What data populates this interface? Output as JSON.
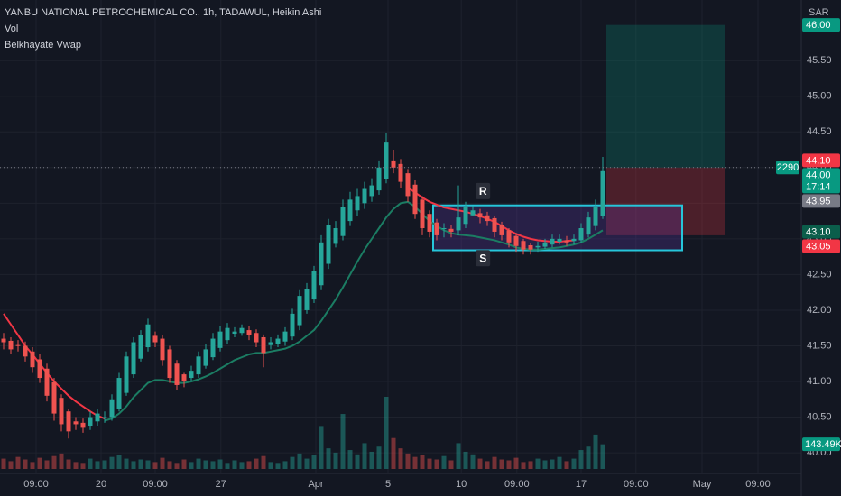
{
  "chart_data": {
    "type": "candlestick",
    "title": "YANBU NATIONAL PETROCHEMICAL CO., 1h, TADAWUL, Heikin Ashi",
    "legend": [
      "Vol",
      "Belkhayate Vwap"
    ],
    "currency": "SAR",
    "up_color": "#26a69a",
    "down_color": "#ef5350",
    "grid": true,
    "xlim": [
      -0.5,
      110.5
    ],
    "ylim": [
      39.71,
      46.35
    ],
    "xticks": [
      {
        "value": 4.5,
        "label": "09:00"
      },
      {
        "value": 13.5,
        "label": "20"
      },
      {
        "value": 21,
        "label": "09:00"
      },
      {
        "value": 30.1,
        "label": "27"
      },
      {
        "value": 43.25,
        "label": "Apr"
      },
      {
        "value": 53.25,
        "label": "5"
      },
      {
        "value": 63.4,
        "label": "10"
      },
      {
        "value": 71.1,
        "label": "09:00"
      },
      {
        "value": 80,
        "label": "17"
      },
      {
        "value": 87.6,
        "label": "09:00"
      },
      {
        "value": 96.75,
        "label": "May"
      },
      {
        "value": 104.5,
        "label": "09:00"
      }
    ],
    "yticks": [
      {
        "value": 40.0,
        "label": "40.00"
      },
      {
        "value": 40.5,
        "label": "40.50"
      },
      {
        "value": 41.0,
        "label": "41.00"
      },
      {
        "value": 41.5,
        "label": "41.50"
      },
      {
        "value": 42.0,
        "label": "42.00"
      },
      {
        "value": 42.5,
        "label": "42.50"
      },
      {
        "value": 43.0,
        "label": "43.00"
      },
      {
        "value": 43.5,
        "label": "43.50"
      },
      {
        "value": 44.0,
        "label": "44.00"
      },
      {
        "value": 44.5,
        "label": "44.50"
      },
      {
        "value": 45.0,
        "label": "45.00"
      },
      {
        "value": 45.5,
        "label": "45.50"
      }
    ],
    "open": [
      41.6,
      41.57,
      41.51,
      41.5,
      41.42,
      41.31,
      41.18,
      40.99,
      40.77,
      40.58,
      40.44,
      40.42,
      40.38,
      40.44,
      40.5,
      40.5,
      40.62,
      40.84,
      41.1,
      41.32,
      41.48,
      41.64,
      41.6,
      41.45,
      41.25,
      41.1,
      41.05,
      41.1,
      41.22,
      41.34,
      41.47,
      41.58,
      41.67,
      41.68,
      41.72,
      41.68,
      41.62,
      41.51,
      41.53,
      41.56,
      41.63,
      41.79,
      42.0,
      42.15,
      42.35,
      42.65,
      42.93,
      43.04,
      43.25,
      43.4,
      43.5,
      43.6,
      43.68,
      43.84,
      44.1,
      44.05,
      43.92,
      43.76,
      43.55,
      43.35,
      43.23,
      43.14,
      43.14,
      43.12,
      43.21,
      43.33,
      43.36,
      43.33,
      43.29,
      43.2,
      43.12,
      43.04,
      42.97,
      42.91,
      42.88,
      42.89,
      42.92,
      42.96,
      42.98,
      42.97,
      42.98,
      43.06,
      43.18,
      43.32
    ],
    "high": [
      41.68,
      41.62,
      41.58,
      41.56,
      41.48,
      41.38,
      41.25,
      41.05,
      40.82,
      40.62,
      40.5,
      40.48,
      40.58,
      40.62,
      40.58,
      40.82,
      41.12,
      41.42,
      41.62,
      41.72,
      41.88,
      41.7,
      41.65,
      41.5,
      41.3,
      41.12,
      41.22,
      41.42,
      41.52,
      41.68,
      41.78,
      41.82,
      41.76,
      41.8,
      41.78,
      41.73,
      41.66,
      41.62,
      41.66,
      41.76,
      42.02,
      42.28,
      42.38,
      42.62,
      43.05,
      43.28,
      43.25,
      43.55,
      43.66,
      43.7,
      43.8,
      43.85,
      44.1,
      44.48,
      44.25,
      44.12,
      43.98,
      43.82,
      43.6,
      43.4,
      43.28,
      43.22,
      43.2,
      43.75,
      43.52,
      43.46,
      43.42,
      43.38,
      43.32,
      43.24,
      43.15,
      43.08,
      43.0,
      42.94,
      42.96,
      43.0,
      43.06,
      43.06,
      43.04,
      43.06,
      43.22,
      43.38,
      43.55,
      44.15
    ],
    "low": [
      41.45,
      41.38,
      41.42,
      41.28,
      41.12,
      40.98,
      40.72,
      40.45,
      40.3,
      40.2,
      40.32,
      40.28,
      40.32,
      40.38,
      40.42,
      40.45,
      40.58,
      40.8,
      41.05,
      41.28,
      41.42,
      41.48,
      41.22,
      40.98,
      40.88,
      40.92,
      41.0,
      41.05,
      41.18,
      41.3,
      41.42,
      41.52,
      41.62,
      41.64,
      41.58,
      41.48,
      41.2,
      41.45,
      41.48,
      41.5,
      41.58,
      41.72,
      41.95,
      42.1,
      42.28,
      42.58,
      42.88,
      42.98,
      43.18,
      43.32,
      43.42,
      43.52,
      43.62,
      43.78,
      43.92,
      43.72,
      43.52,
      43.28,
      43.05,
      43.02,
      42.98,
      43.02,
      43.02,
      43.05,
      43.15,
      43.32,
      43.22,
      43.18,
      43.02,
      42.98,
      42.88,
      42.82,
      42.78,
      42.78,
      42.82,
      42.86,
      42.88,
      42.92,
      42.9,
      42.92,
      42.94,
      43.02,
      43.12,
      43.28
    ],
    "close": [
      41.55,
      41.45,
      41.5,
      41.35,
      41.2,
      41.05,
      40.8,
      40.55,
      40.4,
      40.3,
      40.4,
      40.35,
      40.5,
      40.55,
      40.5,
      40.75,
      41.05,
      41.35,
      41.55,
      41.65,
      41.8,
      41.55,
      41.3,
      41.05,
      40.95,
      41.0,
      41.15,
      41.35,
      41.45,
      41.6,
      41.7,
      41.75,
      41.7,
      41.75,
      41.65,
      41.55,
      41.4,
      41.55,
      41.6,
      41.7,
      41.95,
      42.2,
      42.3,
      42.55,
      42.95,
      43.2,
      43.15,
      43.45,
      43.55,
      43.6,
      43.7,
      43.75,
      44.0,
      44.35,
      44.0,
      43.8,
      43.6,
      43.35,
      43.15,
      43.1,
      43.05,
      43.15,
      43.1,
      43.3,
      43.45,
      43.4,
      43.3,
      43.25,
      43.1,
      43.05,
      42.95,
      42.9,
      42.85,
      42.85,
      42.9,
      42.95,
      43.0,
      43.0,
      42.95,
      43.0,
      43.15,
      43.3,
      43.45,
      43.95
    ],
    "volume": {
      "values": [
        60000,
        45000,
        70000,
        55000,
        40000,
        65000,
        50000,
        75000,
        90000,
        55000,
        40000,
        35000,
        60000,
        45000,
        50000,
        70000,
        80000,
        60000,
        45000,
        55000,
        50000,
        40000,
        65000,
        45000,
        35000,
        55000,
        40000,
        60000,
        50000,
        45000,
        55000,
        35000,
        50000,
        40000,
        45000,
        60000,
        75000,
        40000,
        35000,
        45000,
        70000,
        90000,
        60000,
        80000,
        250000,
        120000,
        95000,
        320000,
        110000,
        85000,
        150000,
        100000,
        130000,
        420000,
        180000,
        120000,
        90000,
        70000,
        80000,
        60000,
        55000,
        75000,
        50000,
        150000,
        100000,
        85000,
        60000,
        45000,
        70000,
        55000,
        50000,
        65000,
        40000,
        45000,
        60000,
        50000,
        55000,
        70000,
        45000,
        60000,
        110000,
        130000,
        200000,
        143490
      ],
      "last_label": "143.49K",
      "color": "#089981"
    },
    "lines": [
      {
        "color": "#f23645",
        "values": [
          41.95,
          41.8,
          41.65,
          41.5,
          41.38,
          41.25,
          41.12,
          41.0,
          40.9,
          40.8,
          40.72,
          40.65,
          40.58,
          40.52,
          40.48,
          null,
          null,
          null,
          null,
          null,
          null,
          null,
          null,
          null,
          null,
          null,
          null,
          null,
          null,
          null,
          null,
          null,
          null,
          null,
          null,
          null,
          null,
          null,
          null,
          null,
          null,
          null,
          null,
          null,
          null,
          null,
          null,
          null,
          null,
          null,
          null,
          null,
          null,
          null,
          null,
          null,
          43.72,
          43.65,
          43.58,
          43.52,
          43.48,
          43.44,
          43.42,
          43.4,
          43.38,
          43.35,
          43.32,
          43.28,
          43.24,
          43.18,
          43.12,
          43.07,
          43.03,
          43.0,
          42.98,
          42.97,
          42.96,
          42.96,
          42.97,
          42.98,
          null,
          null,
          null,
          null
        ]
      },
      {
        "color": "#1b7d63",
        "values": [
          null,
          null,
          null,
          null,
          null,
          null,
          null,
          null,
          null,
          null,
          null,
          null,
          null,
          null,
          40.45,
          40.48,
          40.55,
          40.65,
          40.78,
          40.88,
          40.98,
          41.02,
          41.02,
          41.0,
          40.98,
          40.98,
          41.0,
          41.03,
          41.07,
          41.12,
          41.18,
          41.24,
          41.3,
          41.34,
          41.38,
          41.4,
          41.4,
          41.42,
          41.44,
          41.46,
          41.5,
          41.56,
          41.64,
          41.72,
          41.85,
          42.0,
          42.15,
          42.32,
          42.5,
          42.68,
          42.85,
          43.0,
          43.15,
          43.3,
          43.42,
          43.5,
          43.52,
          43.45,
          43.35,
          43.25,
          43.18,
          43.12,
          43.08,
          43.06,
          43.05,
          43.04,
          43.02,
          43.0,
          42.98,
          42.95,
          42.92,
          42.88,
          42.86,
          42.85,
          42.85,
          42.86,
          42.87,
          42.88,
          42.9,
          42.92,
          42.95,
          43.0,
          43.06,
          43.12
        ]
      }
    ],
    "box": {
      "x0": 59.5,
      "x1": 94,
      "y0": 42.84,
      "y1": 43.47,
      "color": "#26c6da"
    },
    "annotations": [
      {
        "text": "R",
        "x": 66.4,
        "y": 43.67
      },
      {
        "text": "S",
        "x": 66.4,
        "y": 42.73
      }
    ],
    "position": {
      "x0": 83.5,
      "x1": 100,
      "target": 46.0,
      "entry": 44.0,
      "stop": 43.05,
      "quantity": 2290
    },
    "current_price": 44.0,
    "price_badges": [
      {
        "value": 46.0,
        "label": "46.00",
        "color": "#089981"
      },
      {
        "value": 44.1,
        "label": "44.10",
        "color": "#f23645"
      },
      {
        "value": 44.0,
        "label": "44.00",
        "color": "#089981",
        "countdown": "17:14"
      },
      {
        "value": 43.95,
        "label": "43.95",
        "color": "#787b86"
      },
      {
        "value": 43.1,
        "label": "43.10",
        "color": "#0b5e4b"
      },
      {
        "value": 43.05,
        "label": "43.05",
        "color": "#f23645"
      }
    ]
  }
}
